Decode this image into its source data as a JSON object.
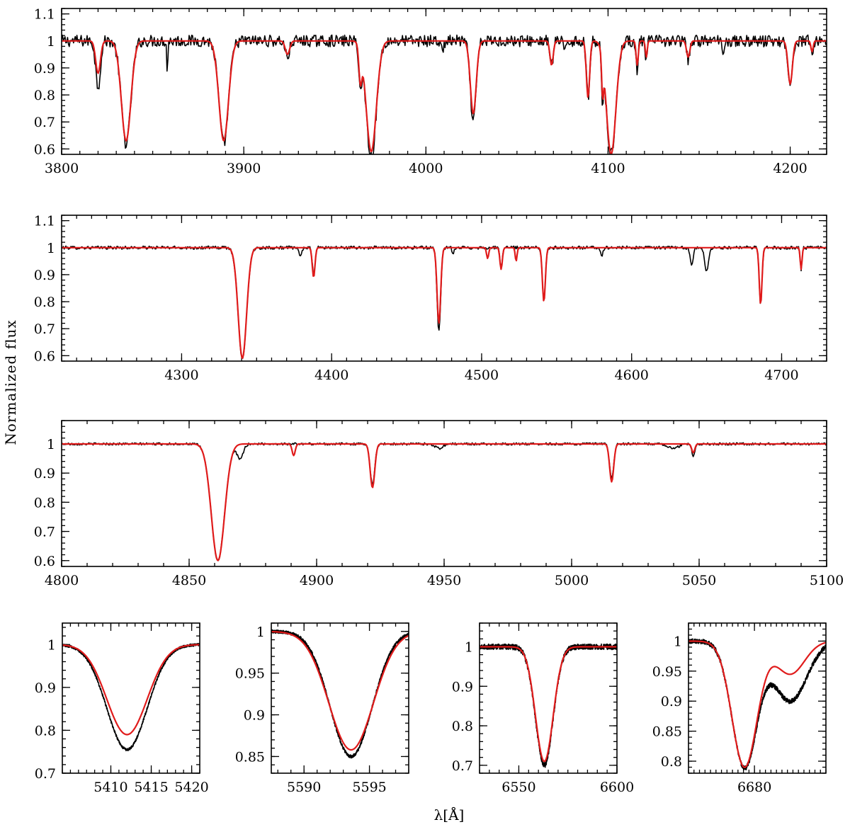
{
  "figure": {
    "ylabel": "Normalized flux",
    "xlabel": "λ[Å]",
    "colors": {
      "observed": "#000000",
      "model": "#e01b1b"
    }
  },
  "chart_data": [
    {
      "type": "line",
      "xlim": [
        3800,
        4220
      ],
      "ylim": [
        0.58,
        1.12
      ],
      "xticks": [
        3800,
        3900,
        4000,
        4100,
        4200
      ],
      "yticks": [
        0.6,
        0.7,
        0.8,
        0.9,
        1,
        1.1
      ],
      "noise": 0.022,
      "series": [
        {
          "key": "observed",
          "lines": [
            [
              3820,
              0.83,
              1.3
            ],
            [
              3835.4,
              0.62,
              2.6
            ],
            [
              3858,
              0.88,
              0.3
            ],
            [
              3889,
              0.62,
              2.6
            ],
            [
              3924,
              0.94,
              1.2
            ],
            [
              3964,
              0.85,
              0.8
            ],
            [
              3970,
              0.57,
              2.8
            ],
            [
              4009,
              0.96,
              0.8
            ],
            [
              4026,
              0.7,
              1.6
            ],
            [
              4069,
              0.91,
              0.9
            ],
            [
              4076,
              0.95,
              0.6
            ],
            [
              4089,
              0.79,
              0.9
            ],
            [
              4097,
              0.83,
              0.5
            ],
            [
              4101.7,
              0.58,
              2.6
            ],
            [
              4116,
              0.89,
              0.6
            ],
            [
              4121,
              0.92,
              0.5
            ],
            [
              4144,
              0.93,
              0.9
            ],
            [
              4163,
              0.96,
              0.5
            ],
            [
              4200,
              0.83,
              1.2
            ],
            [
              4212,
              0.95,
              0.6
            ]
          ]
        },
        {
          "key": "model",
          "lines": [
            [
              3820,
              0.88,
              1.3
            ],
            [
              3835.4,
              0.63,
              2.6
            ],
            [
              3889,
              0.63,
              2.6
            ],
            [
              3924,
              0.95,
              1.2
            ],
            [
              3964,
              0.87,
              0.8
            ],
            [
              3970,
              0.59,
              2.8
            ],
            [
              4026,
              0.73,
              1.6
            ],
            [
              4069,
              0.91,
              0.9
            ],
            [
              4089,
              0.79,
              0.9
            ],
            [
              4097,
              0.85,
              0.5
            ],
            [
              4101.7,
              0.58,
              2.6
            ],
            [
              4116,
              0.91,
              0.6
            ],
            [
              4121,
              0.94,
              0.5
            ],
            [
              4144,
              0.94,
              0.9
            ],
            [
              4200,
              0.84,
              1.2
            ],
            [
              4212,
              0.96,
              0.6
            ]
          ]
        }
      ]
    },
    {
      "type": "line",
      "xlim": [
        4220,
        4730
      ],
      "ylim": [
        0.58,
        1.12
      ],
      "xticks": [
        4300,
        4400,
        4500,
        4600,
        4700
      ],
      "yticks": [
        0.6,
        0.7,
        0.8,
        0.9,
        1,
        1.1
      ],
      "noise": 0.006,
      "series": [
        {
          "key": "observed",
          "lines": [
            [
              4340.5,
              0.59,
              2.8
            ],
            [
              4379,
              0.97,
              1.0
            ],
            [
              4388,
              0.9,
              0.9
            ],
            [
              4471.5,
              0.69,
              1.2
            ],
            [
              4481,
              0.97,
              0.6
            ],
            [
              4513,
              0.93,
              0.8
            ],
            [
              4541.5,
              0.8,
              1.0
            ],
            [
              4580,
              0.97,
              0.8
            ],
            [
              4640,
              0.94,
              1.1
            ],
            [
              4650,
              0.91,
              1.2
            ],
            [
              4686,
              0.79,
              0.9
            ],
            [
              4713,
              0.92,
              0.6
            ]
          ]
        },
        {
          "key": "model",
          "lines": [
            [
              4340.5,
              0.59,
              2.8
            ],
            [
              4388,
              0.89,
              0.9
            ],
            [
              4471.5,
              0.72,
              1.2
            ],
            [
              4504,
              0.96,
              0.7
            ],
            [
              4513,
              0.92,
              0.8
            ],
            [
              4523,
              0.95,
              0.6
            ],
            [
              4541.5,
              0.8,
              1.0
            ],
            [
              4686,
              0.79,
              0.9
            ],
            [
              4713,
              0.92,
              0.6
            ]
          ]
        }
      ]
    },
    {
      "type": "line",
      "xlim": [
        4800,
        5100
      ],
      "ylim": [
        0.58,
        1.08
      ],
      "xticks": [
        4800,
        4850,
        4900,
        4950,
        5000,
        5050,
        5100
      ],
      "yticks": [
        0.6,
        0.7,
        0.8,
        0.9,
        1
      ],
      "noise": 0.004,
      "series": [
        {
          "key": "observed",
          "lines": [
            [
              4861.3,
              0.6,
              2.6
            ],
            [
              4870,
              0.95,
              1.2
            ],
            [
              4921.9,
              0.86,
              0.9
            ],
            [
              4948,
              0.985,
              1.5
            ],
            [
              5015.7,
              0.88,
              0.8
            ],
            [
              5040,
              0.985,
              2.0
            ],
            [
              5047.7,
              0.96,
              0.6
            ]
          ]
        },
        {
          "key": "model",
          "lines": [
            [
              4861.3,
              0.6,
              2.6
            ],
            [
              4891,
              0.96,
              0.6
            ],
            [
              4921.9,
              0.85,
              0.9
            ],
            [
              5015.7,
              0.87,
              0.8
            ],
            [
              5047.7,
              0.97,
              0.6
            ]
          ]
        }
      ]
    },
    {
      "type": "line",
      "xlim": [
        5404,
        5421
      ],
      "ylim": [
        0.7,
        1.05
      ],
      "xticks": [
        5410,
        5415,
        5420
      ],
      "yticks": [
        0.7,
        0.8,
        0.9,
        1
      ],
      "noise": 0.003,
      "series": [
        {
          "key": "observed",
          "lines": [
            [
              5412,
              0.755,
              2.5
            ]
          ]
        },
        {
          "key": "model",
          "lines": [
            [
              5412,
              0.79,
              2.5
            ]
          ]
        }
      ]
    },
    {
      "type": "line",
      "xlim": [
        5587.5,
        5598
      ],
      "ylim": [
        0.83,
        1.01
      ],
      "xticks": [
        5590,
        5595
      ],
      "yticks": [
        0.85,
        0.9,
        0.95,
        1
      ],
      "noise": 0.002,
      "series": [
        {
          "key": "observed",
          "lines": [
            [
              5593.6,
              0.85,
              1.6
            ]
          ]
        },
        {
          "key": "model",
          "lines": [
            [
              5593.6,
              0.858,
              1.7
            ]
          ]
        }
      ]
    },
    {
      "type": "line",
      "xlim": [
        6530,
        6600
      ],
      "ylim": [
        0.68,
        1.06
      ],
      "xticks": [
        6550,
        6600
      ],
      "yticks": [
        0.7,
        0.8,
        0.9,
        1
      ],
      "noise": 0.007,
      "series": [
        {
          "key": "observed",
          "lines": [
            [
              6563,
              0.7,
              4.5
            ]
          ]
        },
        {
          "key": "model",
          "lines": [
            [
              6563,
              0.71,
              4.5
            ]
          ]
        }
      ]
    },
    {
      "type": "line",
      "xlim": [
        6668,
        6693
      ],
      "ylim": [
        0.78,
        1.03
      ],
      "xticks": [
        6680
      ],
      "yticks": [
        0.8,
        0.85,
        0.9,
        0.95,
        1
      ],
      "noise": 0.004,
      "series": [
        {
          "key": "observed",
          "lines": [
            [
              6678.2,
              0.79,
              2.3
            ],
            [
              6686.5,
              0.9,
              3.0
            ]
          ]
        },
        {
          "key": "model",
          "lines": [
            [
              6678.2,
              0.79,
              2.3
            ],
            [
              6686.5,
              0.945,
              2.6
            ]
          ]
        }
      ]
    }
  ]
}
